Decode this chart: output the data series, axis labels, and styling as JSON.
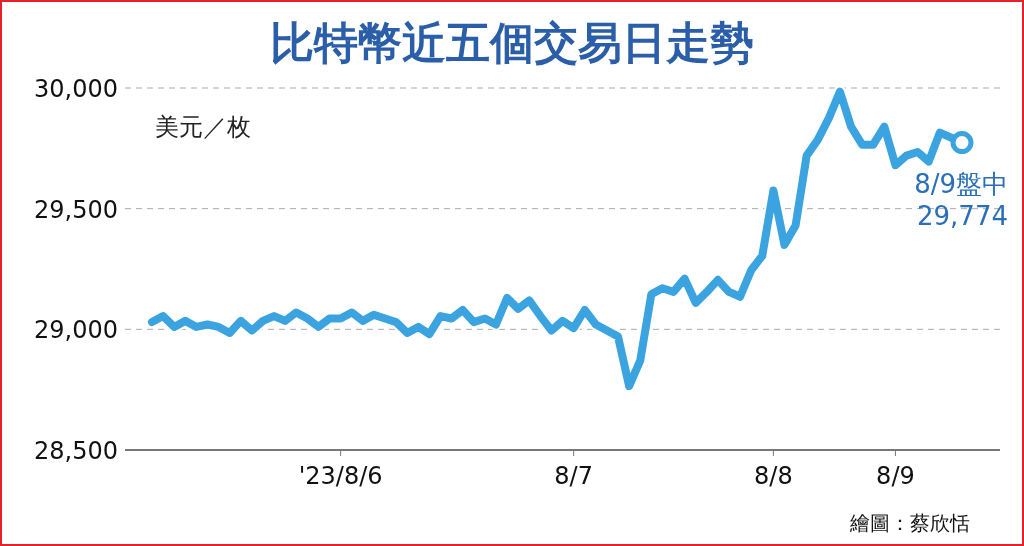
{
  "chart_data": {
    "type": "line",
    "title": "比特幣近五個交易日走勢",
    "ylabel": "美元／枚",
    "categories": [
      null,
      null,
      null,
      null,
      null,
      null,
      null,
      null,
      null,
      null,
      null,
      null,
      null,
      null,
      null,
      null,
      null,
      "'23/8/6",
      null,
      null,
      null,
      null,
      null,
      null,
      null,
      null,
      null,
      null,
      null,
      null,
      null,
      null,
      null,
      null,
      null,
      null,
      null,
      null,
      "8/7",
      null,
      null,
      null,
      null,
      null,
      null,
      null,
      null,
      null,
      null,
      null,
      null,
      null,
      null,
      null,
      null,
      null,
      "8/8",
      null,
      null,
      null,
      null,
      null,
      null,
      null,
      null,
      null,
      null,
      "8/9",
      null,
      null,
      null,
      null,
      null,
      null
    ],
    "series": [
      {
        "color": "#3ba3e0",
        "values": [
          29030,
          29055,
          29010,
          29035,
          29010,
          29020,
          29010,
          28985,
          29035,
          28995,
          29035,
          29055,
          29035,
          29070,
          29045,
          29010,
          29045,
          29045,
          29070,
          29035,
          29060,
          29045,
          29030,
          28985,
          29010,
          28980,
          29055,
          29045,
          29080,
          29030,
          29045,
          29020,
          29130,
          29085,
          29120,
          29055,
          28995,
          29035,
          29005,
          29080,
          29020,
          28995,
          28970,
          28765,
          28870,
          29145,
          29170,
          29155,
          29210,
          29110,
          29155,
          29205,
          29155,
          29135,
          29245,
          29305,
          29575,
          29350,
          29430,
          29720,
          29785,
          29875,
          29985,
          29840,
          29765,
          29765,
          29840,
          29680,
          29720,
          29735,
          29695,
          29815,
          29795,
          29774
        ]
      }
    ],
    "ylim": [
      28500,
      30000
    ],
    "yticks": [
      {
        "value": 28500,
        "label": "28,500"
      },
      {
        "value": 29000,
        "label": "29,000"
      },
      {
        "value": 29500,
        "label": "29,500"
      },
      {
        "value": 30000,
        "label": "30,000"
      }
    ],
    "grid": "y",
    "marker": "none",
    "line_style": "solid",
    "annotations": [
      {
        "text": "8/9盤中\n29,774",
        "y": 29774
      },
      "繪圖：蔡欣恬"
    ]
  }
}
